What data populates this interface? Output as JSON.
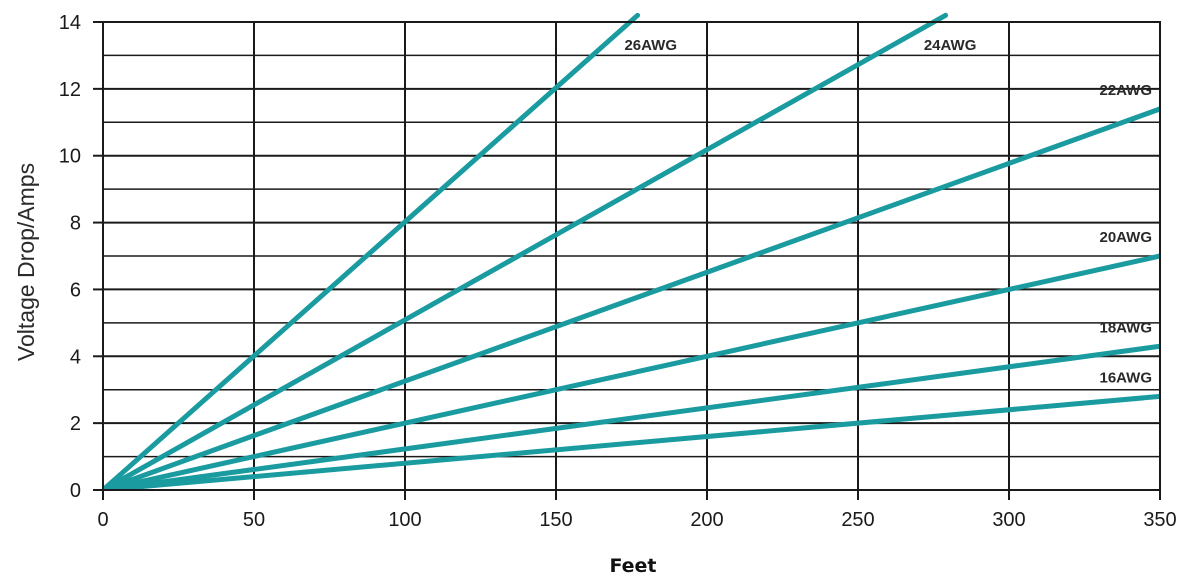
{
  "chart_data": {
    "type": "line",
    "title": "",
    "xlabel": "Feet",
    "ylabel": "Voltage Drop/Amps",
    "xlim": [
      0,
      350
    ],
    "ylim": [
      0,
      14
    ],
    "x_ticks": [
      0,
      50,
      100,
      150,
      200,
      250,
      300,
      350
    ],
    "y_ticks": [
      0,
      2,
      4,
      6,
      8,
      10,
      12,
      14
    ],
    "grid": true,
    "line_color": "#1a9ba0",
    "series": [
      {
        "name": "26AWG",
        "x": [
          0,
          177
        ],
        "y": [
          0,
          14.2
        ]
      },
      {
        "name": "24AWG",
        "x": [
          0,
          279
        ],
        "y": [
          0,
          14.2
        ]
      },
      {
        "name": "22AWG",
        "x": [
          0,
          350
        ],
        "y": [
          0,
          11.4
        ]
      },
      {
        "name": "20AWG",
        "x": [
          0,
          350
        ],
        "y": [
          0,
          7.0
        ]
      },
      {
        "name": "18AWG",
        "x": [
          0,
          350
        ],
        "y": [
          0,
          4.3
        ]
      },
      {
        "name": "16AWG",
        "x": [
          0,
          350
        ],
        "y": [
          0,
          2.8
        ]
      }
    ]
  }
}
